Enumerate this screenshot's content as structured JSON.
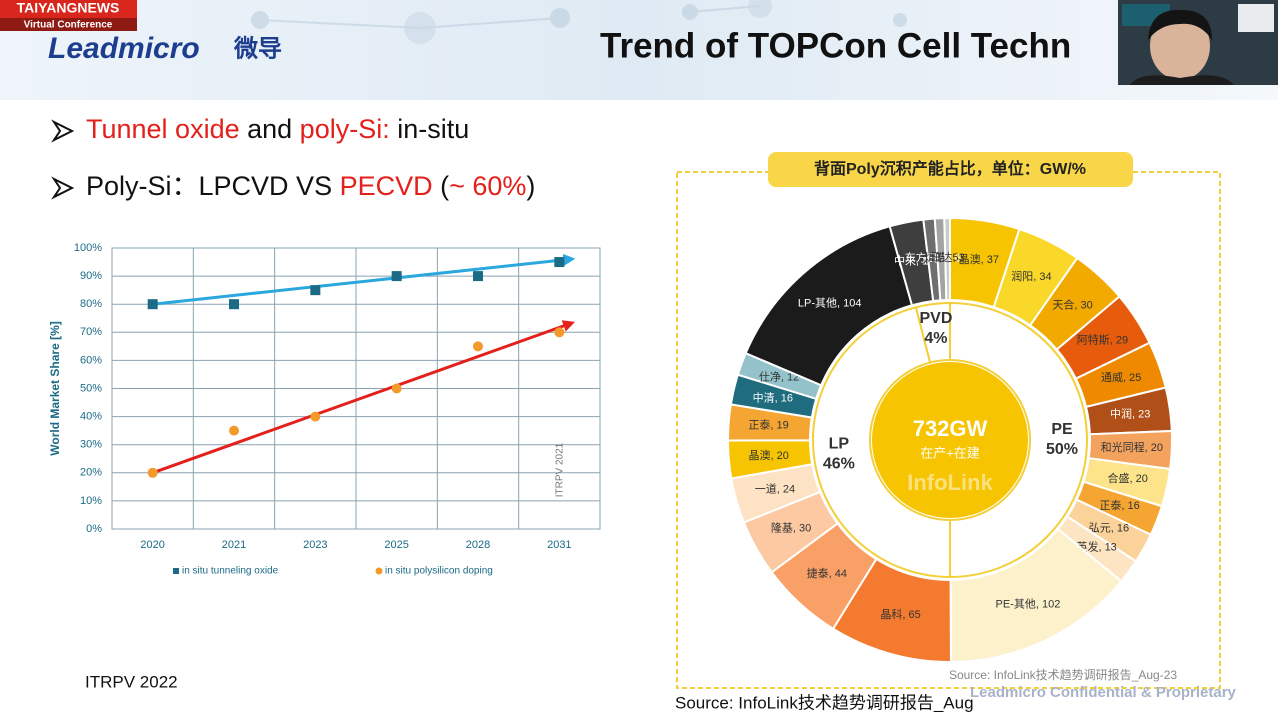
{
  "header": {
    "badge": "TAIYANGNEWS",
    "badge_sub": "Virtual Conference",
    "logo": "Leadmicro",
    "logo_cn": "微导",
    "title": "Trend of TOPCon Cell Techn"
  },
  "bullets": [
    [
      {
        "text": "Tunnel oxide",
        "color": "#e3201b"
      },
      {
        "text": " and "
      },
      {
        "text": "poly-Si:",
        "color": "#e3201b"
      },
      {
        "text": " in-situ"
      }
    ],
    [
      {
        "text": "Poly-Si：LPCVD VS "
      },
      {
        "text": "PECVD",
        "color": "#e3201b"
      },
      {
        "text": " ("
      },
      {
        "text": "~ 60%",
        "color": "#e3201b"
      },
      {
        "text": ")"
      }
    ]
  ],
  "chart_data": [
    {
      "type": "scatter",
      "ylabel": "World Market Share [%]",
      "annotation": "ITRPV 2021",
      "categories": [
        "2020",
        "2021",
        "2023",
        "2025",
        "2028",
        "2031"
      ],
      "ylim": [
        0,
        100
      ],
      "yticks": [
        {
          "value": 0,
          "label": "0%"
        },
        {
          "value": 10,
          "label": "10%"
        },
        {
          "value": 20,
          "label": "20%"
        },
        {
          "value": 30,
          "label": "30%"
        },
        {
          "value": 40,
          "label": "40%"
        },
        {
          "value": 50,
          "label": "50%"
        },
        {
          "value": 60,
          "label": "60%"
        },
        {
          "value": 70,
          "label": "70%"
        },
        {
          "value": 80,
          "label": "80%"
        },
        {
          "value": 90,
          "label": "90%"
        },
        {
          "value": 100,
          "label": "100%"
        }
      ],
      "grid": true,
      "series": [
        {
          "name": "in situ tunneling oxide",
          "color": "#1b6a86",
          "marker": "square",
          "values": [
            80,
            80,
            85,
            90,
            90,
            95
          ]
        },
        {
          "name": "in situ polysilicon doping",
          "color": "#f39a2b",
          "marker": "circle",
          "values": [
            20,
            35,
            40,
            50,
            65,
            70
          ]
        }
      ],
      "trendlines": [
        {
          "color": "#2aa8de",
          "start": 80,
          "end": 96
        },
        {
          "color": "#e3201b",
          "start": 20,
          "end": 73
        }
      ]
    },
    {
      "type": "donut",
      "title": "背面Poly沉积产能占比，单位：GW/%",
      "center_value": "732GW",
      "center_label": "在产+在建",
      "watermark": "InfoLink",
      "source": "Source: InfoLink技术趋势调研报告_Aug-23",
      "inner": {
        "categories": [
          "PE",
          "LP",
          "PVD"
        ],
        "values": [
          50,
          46,
          4
        ],
        "value_labels": [
          "50%",
          "46%",
          "4%"
        ]
      },
      "outer": {
        "values": [
          37,
          34,
          30,
          29,
          25,
          23,
          20,
          20,
          16,
          16,
          13,
          102,
          65,
          44,
          30,
          24,
          20,
          19,
          16,
          12,
          104,
          18,
          6,
          5,
          3
        ],
        "value_labels": [
          "晶澳, 37",
          "润阳, 34",
          "天合, 30",
          "阿特斯, 29",
          "通威, 25",
          "中润, 23",
          "和光同程, 20",
          "合盛, 20",
          "正泰, 16",
          "弘元, 16",
          "英发, 13",
          "PE-其他, 102",
          "晶科, 65",
          "捷泰, 44",
          "隆基, 30",
          "一道, 24",
          "晶澳, 20",
          "正泰, 19",
          "中清, 16",
          "仕净, 12",
          "LP-其他, 104",
          "中来, 18",
          "东方日升, 6",
          "炘皓, 5",
          "日达, 3"
        ],
        "colors": [
          "#f6c400",
          "#f9d82a",
          "#f2a900",
          "#e65c0c",
          "#ef8a00",
          "#b04f17",
          "#f3a35e",
          "#fde38a",
          "#f5a632",
          "#fbd29a",
          "#fde5c4",
          "#fdf1cc",
          "#f47a30",
          "#f9a066",
          "#fcc9a2",
          "#fde2c4",
          "#f6c400",
          "#f5a632",
          "#1e6c7e",
          "#93c2ca",
          "#1b1b1b",
          "#3e3e3e",
          "#6e6e6e",
          "#a3a3a3",
          "#cbcbcb"
        ]
      }
    }
  ],
  "footer": {
    "left": "ITRPV 2022",
    "source": "Source: InfoLink技术趋势调研报告_Aug",
    "confidential": "Leadmicro Confidential & Proprietary"
  }
}
